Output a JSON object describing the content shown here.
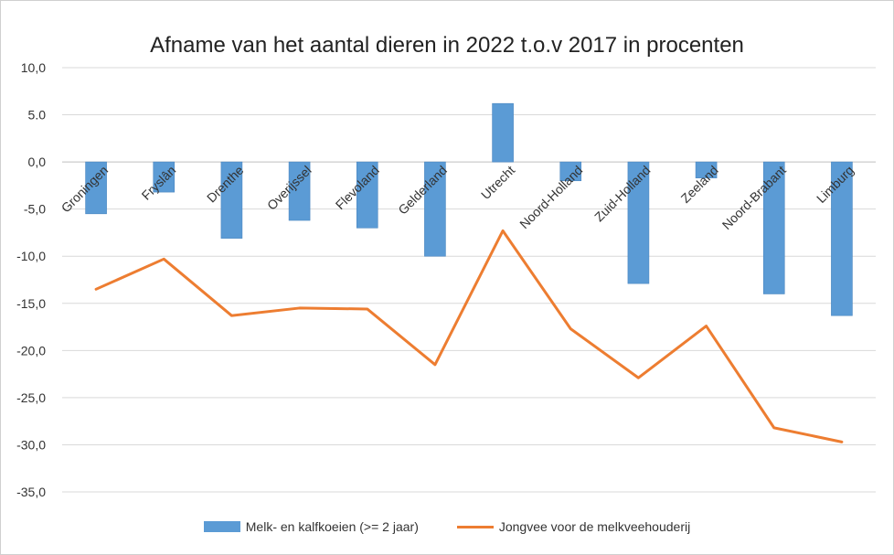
{
  "chart_data": {
    "type": "bar",
    "title": "Afname van het aantal dieren in 2022 t.o.v 2017 in procenten",
    "categories": [
      "Groningen",
      "Fryslân",
      "Drenthe",
      "Overijssel",
      "Flevoland",
      "Gelderland",
      "Utrecht",
      "Noord-Holland",
      "Zuid-Holland",
      "Zeeland",
      "Noord-Brabant",
      "Limburg"
    ],
    "series": [
      {
        "name": "Melk- en kalfkoeien (>= 2 jaar)",
        "type": "bar",
        "color": "#5b9bd5",
        "values": [
          -5.5,
          -3.2,
          -8.1,
          -6.2,
          -7.0,
          -10.0,
          6.2,
          -2.0,
          -12.9,
          -1.7,
          -14.0,
          -16.3
        ]
      },
      {
        "name": "Jongvee voor de melkveehouderij",
        "type": "line",
        "color": "#ed7d31",
        "values": [
          -13.5,
          -10.3,
          -16.3,
          -15.5,
          -15.6,
          -21.5,
          -7.3,
          -17.7,
          -22.9,
          -17.4,
          -28.2,
          -29.7
        ]
      }
    ],
    "ylim": [
      -35,
      10
    ],
    "yticks": [
      "10,0",
      "5.0",
      "0,0",
      "-5,0",
      "-10,0",
      "-15,0",
      "-20,0",
      "-25,0",
      "-30,0",
      "-35,0"
    ],
    "grid": true,
    "legend": "bottom"
  }
}
